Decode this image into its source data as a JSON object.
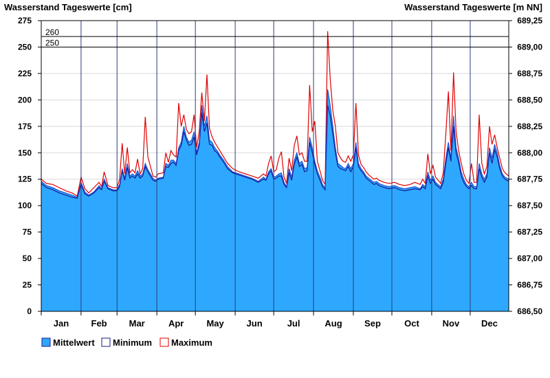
{
  "chart_data": {
    "type": "area",
    "title_left": "Wasserstand Tageswerte [cm]",
    "title_right": "Wasserstand Tageswerte [m NN]",
    "ylim": [
      0,
      275
    ],
    "yticks_left": [
      "0",
      "25",
      "50",
      "75",
      "100",
      "125",
      "150",
      "175",
      "200",
      "225",
      "250",
      "275"
    ],
    "yticks_right": [
      "686,50",
      "686,75",
      "687,00",
      "687,25",
      "687,50",
      "687,75",
      "688,00",
      "688,25",
      "688,50",
      "688,75",
      "689,00",
      "689,25"
    ],
    "months": [
      "Jan",
      "Feb",
      "Mar",
      "Apr",
      "May",
      "Jun",
      "Jul",
      "Aug",
      "Sep",
      "Oct",
      "Nov",
      "Dec"
    ],
    "month_days": [
      31,
      28,
      31,
      30,
      31,
      30,
      31,
      31,
      30,
      31,
      30,
      31
    ],
    "reference_lines": [
      {
        "label": "260",
        "value": 260
      },
      {
        "label": "250",
        "value": 250
      }
    ],
    "grid": true,
    "legend_position": "bottom-left",
    "colors": {
      "mittelwert_fill": "#2ea8ff",
      "minimum_line": "#1a1a8c",
      "maximum_line": "#e00000"
    },
    "series": [
      {
        "name": "Mittelwert",
        "key": "mean"
      },
      {
        "name": "Minimum",
        "key": "min"
      },
      {
        "name": "Maximum",
        "key": "max"
      }
    ],
    "x_day": [
      1,
      5,
      10,
      15,
      20,
      25,
      29,
      32,
      35,
      38,
      42,
      46,
      48,
      50,
      53,
      57,
      60,
      62,
      64,
      66,
      68,
      70,
      72,
      74,
      76,
      78,
      80,
      82,
      84,
      88,
      90,
      92,
      96,
      98,
      100,
      102,
      104,
      106,
      108,
      110,
      112,
      114,
      116,
      118,
      120,
      122,
      124,
      126,
      128,
      130,
      132,
      134,
      136,
      138,
      140,
      143,
      146,
      150,
      155,
      160,
      165,
      170,
      174,
      176,
      178,
      180,
      182,
      184,
      186,
      188,
      190,
      192,
      194,
      196,
      198,
      200,
      202,
      204,
      206,
      208,
      210,
      212,
      214,
      216,
      218,
      220,
      222,
      224,
      226,
      228,
      230,
      232,
      234,
      236,
      238,
      240,
      242,
      244,
      246,
      248,
      250,
      252,
      254,
      256,
      258,
      260,
      262,
      264,
      268,
      272,
      276,
      280,
      284,
      288,
      292,
      296,
      298,
      300,
      302,
      304,
      306,
      308,
      310,
      312,
      314,
      316,
      318,
      320,
      322,
      324,
      326,
      328,
      330,
      332,
      334,
      336,
      338,
      340,
      342,
      344,
      346,
      348,
      350,
      352,
      354,
      356,
      358,
      360,
      362,
      365
    ],
    "mean": [
      123,
      119,
      117,
      114,
      112,
      110,
      108,
      122,
      113,
      110,
      113,
      119,
      116,
      125,
      117,
      115,
      115,
      120,
      135,
      126,
      140,
      128,
      130,
      128,
      133,
      128,
      130,
      140,
      134,
      126,
      124,
      126,
      127,
      140,
      138,
      143,
      143,
      140,
      155,
      160,
      175,
      165,
      160,
      162,
      170,
      150,
      160,
      195,
      175,
      185,
      162,
      160,
      155,
      152,
      148,
      143,
      137,
      132,
      130,
      128,
      126,
      123,
      127,
      125,
      132,
      135,
      127,
      128,
      130,
      131,
      122,
      118,
      135,
      127,
      143,
      150,
      140,
      142,
      135,
      136,
      165,
      155,
      142,
      133,
      127,
      120,
      117,
      210,
      195,
      175,
      155,
      140,
      138,
      136,
      135,
      140,
      135,
      140,
      160,
      140,
      135,
      132,
      128,
      126,
      124,
      122,
      123,
      121,
      119,
      118,
      119,
      117,
      116,
      117,
      118,
      116,
      120,
      118,
      132,
      124,
      128,
      122,
      120,
      118,
      125,
      145,
      160,
      145,
      185,
      155,
      145,
      132,
      125,
      120,
      118,
      122,
      118,
      118,
      140,
      130,
      125,
      130,
      155,
      145,
      158,
      150,
      138,
      130,
      127,
      125
    ],
    "min": [
      121,
      117,
      115,
      112,
      110,
      108,
      107,
      120,
      111,
      109,
      112,
      117,
      115,
      123,
      116,
      114,
      114,
      118,
      133,
      124,
      136,
      126,
      128,
      126,
      130,
      126,
      128,
      137,
      132,
      124,
      123,
      125,
      126,
      137,
      136,
      140,
      141,
      138,
      152,
      157,
      170,
      162,
      157,
      158,
      165,
      148,
      157,
      188,
      170,
      178,
      158,
      157,
      152,
      150,
      146,
      141,
      135,
      131,
      129,
      127,
      125,
      122,
      125,
      124,
      130,
      133,
      125,
      126,
      128,
      128,
      120,
      117,
      131,
      124,
      139,
      146,
      137,
      139,
      132,
      133,
      160,
      150,
      139,
      130,
      124,
      118,
      115,
      195,
      185,
      168,
      150,
      137,
      135,
      134,
      133,
      137,
      132,
      137,
      155,
      137,
      133,
      130,
      126,
      124,
      122,
      120,
      121,
      119,
      117,
      116,
      117,
      115,
      114,
      115,
      116,
      115,
      118,
      116,
      128,
      121,
      125,
      120,
      118,
      116,
      122,
      140,
      155,
      142,
      175,
      150,
      141,
      128,
      122,
      118,
      116,
      119,
      116,
      116,
      135,
      127,
      122,
      127,
      150,
      140,
      153,
      146,
      135,
      128,
      125,
      123
    ],
    "max": [
      125,
      121,
      120,
      117,
      114,
      112,
      109,
      127,
      116,
      112,
      117,
      122,
      118,
      132,
      119,
      117,
      117,
      125,
      159,
      130,
      155,
      131,
      134,
      131,
      144,
      130,
      135,
      184,
      146,
      128,
      127,
      130,
      131,
      150,
      141,
      152,
      148,
      146,
      197,
      175,
      186,
      172,
      168,
      170,
      186,
      155,
      170,
      207,
      180,
      224,
      173,
      165,
      160,
      156,
      152,
      146,
      140,
      135,
      132,
      130,
      128,
      126,
      130,
      128,
      140,
      147,
      132,
      134,
      145,
      151,
      127,
      121,
      145,
      133,
      157,
      166,
      148,
      150,
      142,
      142,
      214,
      170,
      180,
      142,
      133,
      124,
      120,
      265,
      220,
      190,
      175,
      150,
      145,
      142,
      141,
      147,
      142,
      148,
      197,
      148,
      139,
      136,
      132,
      129,
      127,
      125,
      126,
      124,
      122,
      121,
      122,
      120,
      119,
      120,
      122,
      120,
      125,
      121,
      149,
      130,
      138,
      127,
      124,
      121,
      131,
      168,
      208,
      152,
      226,
      170,
      152,
      140,
      130,
      124,
      121,
      140,
      122,
      122,
      186,
      140,
      130,
      137,
      175,
      158,
      167,
      155,
      145,
      135,
      131,
      128
    ]
  },
  "legend": {
    "mean_label": "Mittelwert",
    "min_label": "Minimum",
    "max_label": "Maximum"
  }
}
